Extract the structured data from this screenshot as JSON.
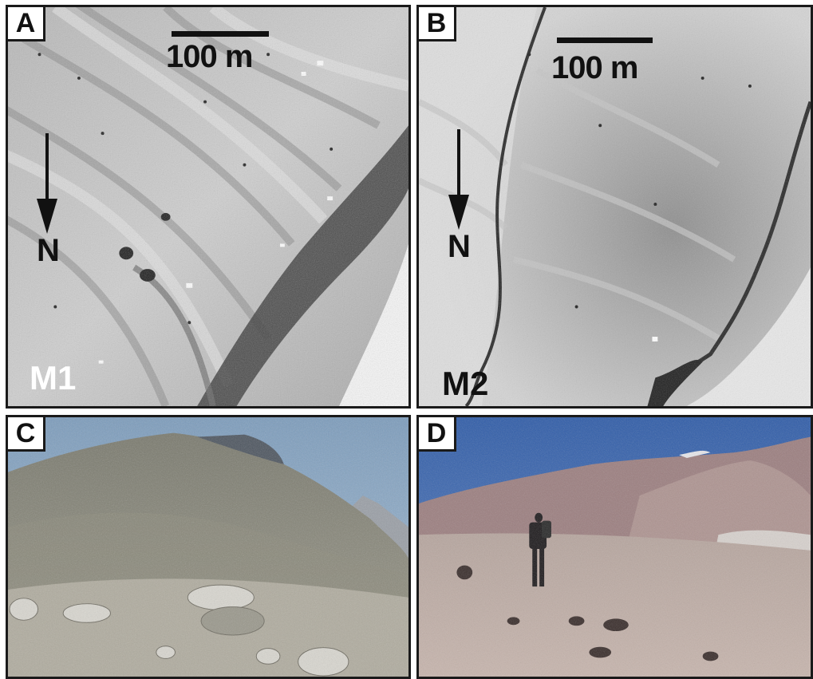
{
  "panels": {
    "a": {
      "letter": "A",
      "scale_label": "100 m",
      "north_label": "N",
      "site_label": "M1"
    },
    "b": {
      "letter": "B",
      "scale_label": "100 m",
      "north_label": "N",
      "site_label": "M2"
    },
    "c": {
      "letter": "C"
    },
    "d": {
      "letter": "D"
    }
  },
  "colors": {
    "frame": "#1a1a1a",
    "site_label_m1": "#ffffff",
    "site_label_m2": "#111111",
    "sky_c": "#86a6c4",
    "sky_d": "#3c66ad"
  }
}
